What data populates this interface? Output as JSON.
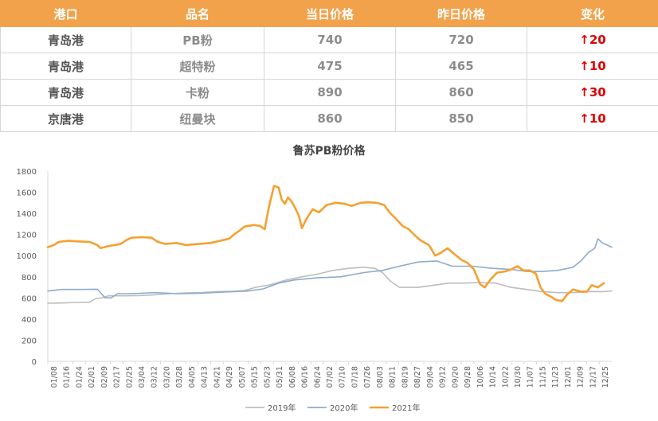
{
  "table": {
    "headers": [
      "港口",
      "品名",
      "当日价格",
      "昨日价格",
      "变化"
    ],
    "rows": [
      {
        "port": "青岛港",
        "product": "PB粉",
        "today": "740",
        "yesterday": "720",
        "change": "↑20"
      },
      {
        "port": "青岛港",
        "product": "超特粉",
        "today": "475",
        "yesterday": "465",
        "change": "↑10"
      },
      {
        "port": "青岛港",
        "product": "卡粉",
        "today": "890",
        "yesterday": "860",
        "change": "↑30"
      },
      {
        "port": "京唐港",
        "product": "纽曼块",
        "today": "860",
        "yesterday": "850",
        "change": "↑10"
      }
    ]
  },
  "colors": {
    "header_bg": "#f2a24b",
    "series_2019": "#bdbdbd",
    "series_2020": "#8faacc",
    "series_2021": "#f5a030",
    "change": "#e00000"
  },
  "chart_data": {
    "type": "line",
    "title": "鲁苏PB粉价格",
    "xlabel": "",
    "ylabel": "",
    "ylim": [
      0,
      1800
    ],
    "yticks": [
      0,
      200,
      400,
      600,
      800,
      1000,
      1200,
      1400,
      1600,
      1800
    ],
    "x_tick_labels": [
      "01/08",
      "01/16",
      "01/24",
      "02/01",
      "02/09",
      "02/17",
      "02/25",
      "03/04",
      "03/12",
      "03/20",
      "03/28",
      "04/05",
      "04/13",
      "04/21",
      "04/29",
      "05/07",
      "05/15",
      "05/23",
      "05/31",
      "06/08",
      "06/16",
      "06/24",
      "07/02",
      "07/10",
      "07/18",
      "07/26",
      "08/03",
      "08/11",
      "08/19",
      "08/27",
      "09/04",
      "09/12",
      "09/20",
      "09/28",
      "10/06",
      "10/14",
      "10/22",
      "10/30",
      "11/07",
      "11/15",
      "11/23",
      "12/01",
      "12/09",
      "12/17",
      "12/25"
    ],
    "x_day_range": [
      1,
      365
    ],
    "legend_position": "bottom",
    "grid": false,
    "series": [
      {
        "name": "2019年",
        "color": "#bdbdbd",
        "points": [
          [
            1,
            550
          ],
          [
            10,
            552
          ],
          [
            20,
            557
          ],
          [
            28,
            559
          ],
          [
            32,
            595
          ],
          [
            36,
            600
          ],
          [
            40,
            620
          ],
          [
            50,
            620
          ],
          [
            60,
            622
          ],
          [
            70,
            630
          ],
          [
            80,
            640
          ],
          [
            90,
            648
          ],
          [
            100,
            650
          ],
          [
            110,
            660
          ],
          [
            120,
            662
          ],
          [
            128,
            670
          ],
          [
            135,
            700
          ],
          [
            145,
            725
          ],
          [
            155,
            770
          ],
          [
            165,
            800
          ],
          [
            175,
            825
          ],
          [
            185,
            860
          ],
          [
            195,
            880
          ],
          [
            205,
            890
          ],
          [
            212,
            880
          ],
          [
            217,
            840
          ],
          [
            222,
            760
          ],
          [
            228,
            700
          ],
          [
            240,
            700
          ],
          [
            250,
            720
          ],
          [
            260,
            740
          ],
          [
            270,
            740
          ],
          [
            280,
            745
          ],
          [
            290,
            740
          ],
          [
            300,
            700
          ],
          [
            310,
            680
          ],
          [
            320,
            660
          ],
          [
            330,
            650
          ],
          [
            340,
            650
          ],
          [
            350,
            660
          ],
          [
            360,
            660
          ],
          [
            365,
            665
          ]
        ]
      },
      {
        "name": "2020年",
        "color": "#8faacc",
        "points": [
          [
            1,
            665
          ],
          [
            10,
            680
          ],
          [
            20,
            680
          ],
          [
            33,
            682
          ],
          [
            38,
            600
          ],
          [
            42,
            600
          ],
          [
            46,
            640
          ],
          [
            55,
            640
          ],
          [
            70,
            650
          ],
          [
            85,
            640
          ],
          [
            100,
            645
          ],
          [
            115,
            655
          ],
          [
            130,
            665
          ],
          [
            140,
            685
          ],
          [
            150,
            740
          ],
          [
            160,
            770
          ],
          [
            175,
            790
          ],
          [
            190,
            800
          ],
          [
            205,
            840
          ],
          [
            217,
            860
          ],
          [
            228,
            900
          ],
          [
            240,
            940
          ],
          [
            252,
            950
          ],
          [
            262,
            900
          ],
          [
            275,
            900
          ],
          [
            288,
            880
          ],
          [
            300,
            870
          ],
          [
            310,
            850
          ],
          [
            320,
            850
          ],
          [
            330,
            860
          ],
          [
            340,
            890
          ],
          [
            345,
            950
          ],
          [
            350,
            1030
          ],
          [
            354,
            1070
          ],
          [
            356,
            1160
          ],
          [
            359,
            1120
          ],
          [
            362,
            1100
          ],
          [
            365,
            1080
          ]
        ]
      },
      {
        "name": "2021年",
        "color": "#f5a030",
        "points": [
          [
            1,
            1080
          ],
          [
            5,
            1100
          ],
          [
            8,
            1130
          ],
          [
            14,
            1140
          ],
          [
            20,
            1135
          ],
          [
            28,
            1130
          ],
          [
            33,
            1100
          ],
          [
            35,
            1070
          ],
          [
            40,
            1090
          ],
          [
            48,
            1110
          ],
          [
            52,
            1150
          ],
          [
            55,
            1170
          ],
          [
            62,
            1175
          ],
          [
            68,
            1170
          ],
          [
            72,
            1130
          ],
          [
            77,
            1110
          ],
          [
            84,
            1120
          ],
          [
            90,
            1100
          ],
          [
            98,
            1110
          ],
          [
            106,
            1120
          ],
          [
            112,
            1140
          ],
          [
            118,
            1160
          ],
          [
            122,
            1210
          ],
          [
            125,
            1240
          ],
          [
            128,
            1275
          ],
          [
            134,
            1290
          ],
          [
            138,
            1280
          ],
          [
            141,
            1250
          ],
          [
            143,
            1410
          ],
          [
            145,
            1540
          ],
          [
            147,
            1660
          ],
          [
            150,
            1645
          ],
          [
            152,
            1530
          ],
          [
            154,
            1490
          ],
          [
            156,
            1550
          ],
          [
            158,
            1520
          ],
          [
            160,
            1470
          ],
          [
            163,
            1380
          ],
          [
            165,
            1260
          ],
          [
            168,
            1350
          ],
          [
            172,
            1440
          ],
          [
            176,
            1410
          ],
          [
            181,
            1480
          ],
          [
            187,
            1500
          ],
          [
            193,
            1490
          ],
          [
            197,
            1470
          ],
          [
            203,
            1500
          ],
          [
            208,
            1505
          ],
          [
            213,
            1500
          ],
          [
            218,
            1480
          ],
          [
            222,
            1400
          ],
          [
            225,
            1360
          ],
          [
            230,
            1280
          ],
          [
            234,
            1250
          ],
          [
            238,
            1190
          ],
          [
            242,
            1140
          ],
          [
            247,
            1100
          ],
          [
            251,
            1000
          ],
          [
            255,
            1030
          ],
          [
            259,
            1070
          ],
          [
            263,
            1020
          ],
          [
            268,
            960
          ],
          [
            272,
            930
          ],
          [
            276,
            870
          ],
          [
            280,
            730
          ],
          [
            283,
            700
          ],
          [
            287,
            780
          ],
          [
            291,
            840
          ],
          [
            296,
            850
          ],
          [
            300,
            870
          ],
          [
            304,
            900
          ],
          [
            308,
            860
          ],
          [
            312,
            860
          ],
          [
            316,
            830
          ],
          [
            319,
            700
          ],
          [
            322,
            640
          ],
          [
            326,
            610
          ],
          [
            329,
            580
          ],
          [
            333,
            570
          ],
          [
            336,
            630
          ],
          [
            340,
            680
          ],
          [
            345,
            660
          ],
          [
            349,
            660
          ],
          [
            352,
            720
          ],
          [
            356,
            700
          ],
          [
            360,
            740
          ]
        ]
      }
    ]
  }
}
